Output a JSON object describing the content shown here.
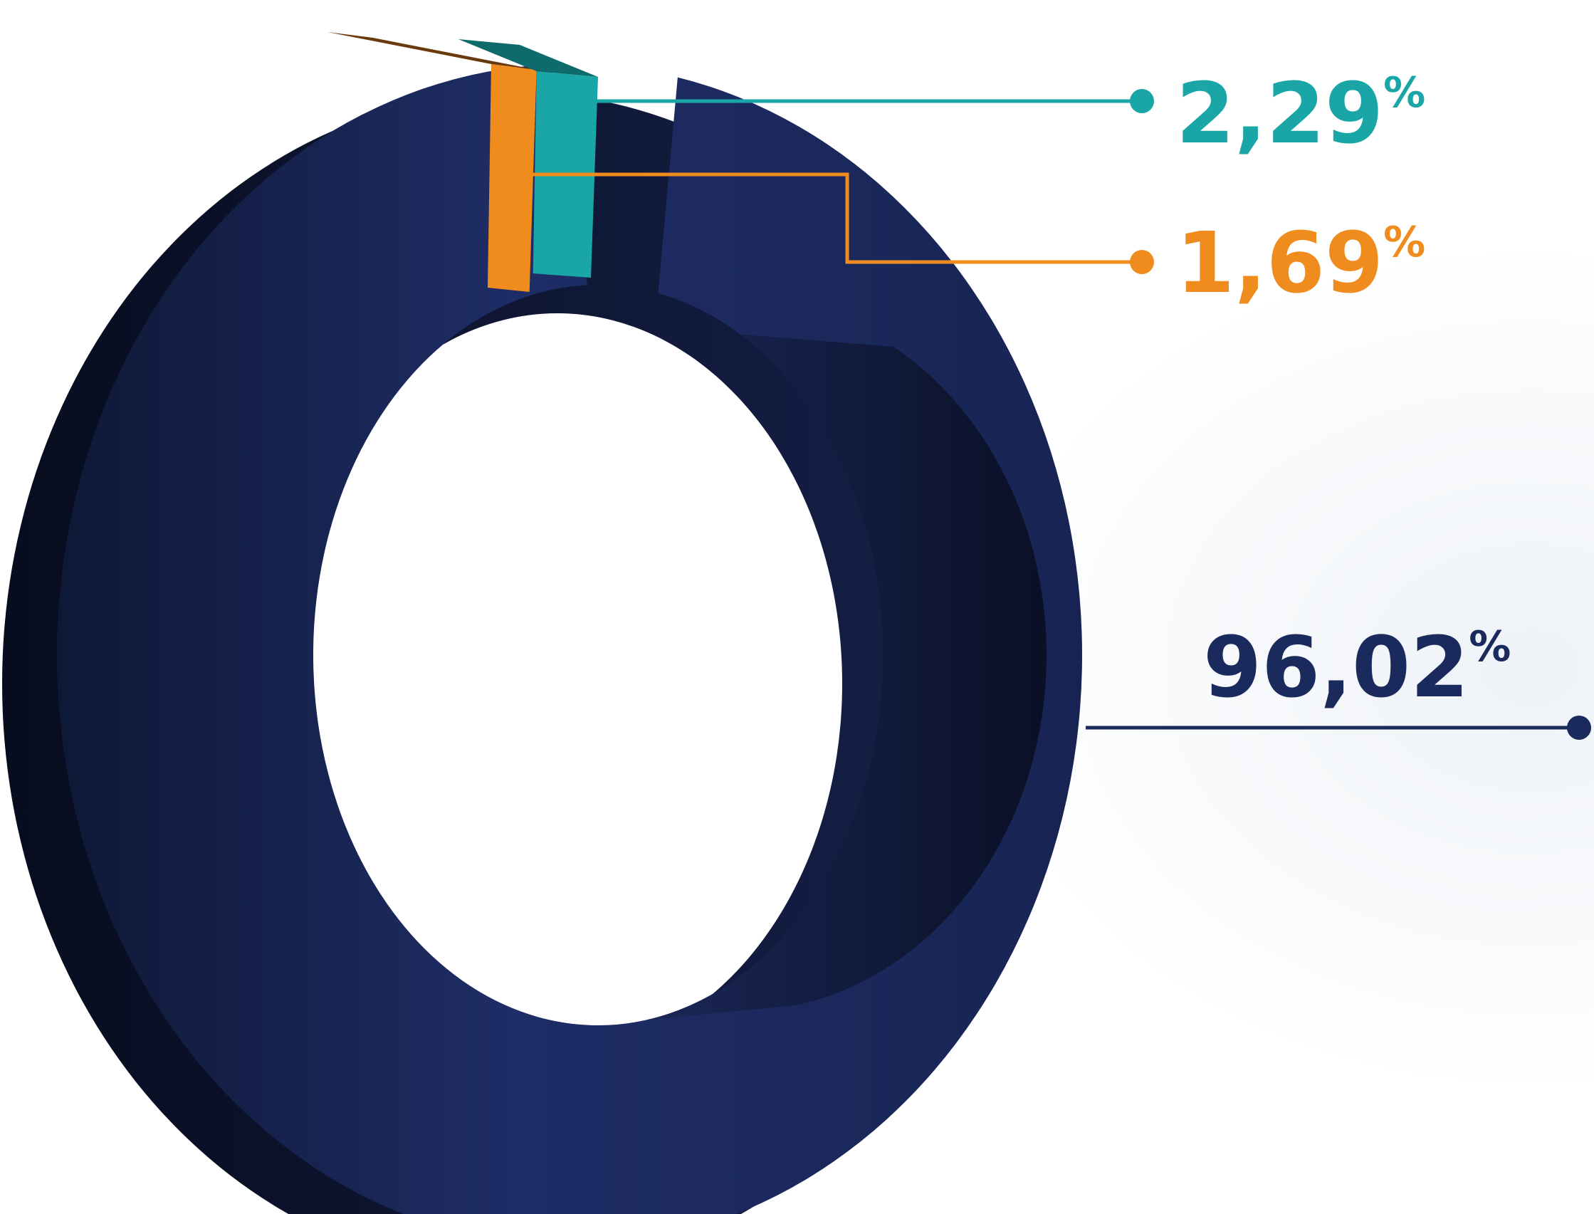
{
  "chart_data": {
    "type": "pie",
    "donut": true,
    "style": "3d",
    "slices": [
      {
        "value": 2.29,
        "label": "2,29",
        "unit": "%",
        "color": "#1aa6a6"
      },
      {
        "value": 1.69,
        "label": "1,69",
        "unit": "%",
        "color": "#f08c1e"
      },
      {
        "value": 96.02,
        "label": "96,02",
        "unit": "%",
        "color": "#1b2a5c"
      }
    ]
  }
}
